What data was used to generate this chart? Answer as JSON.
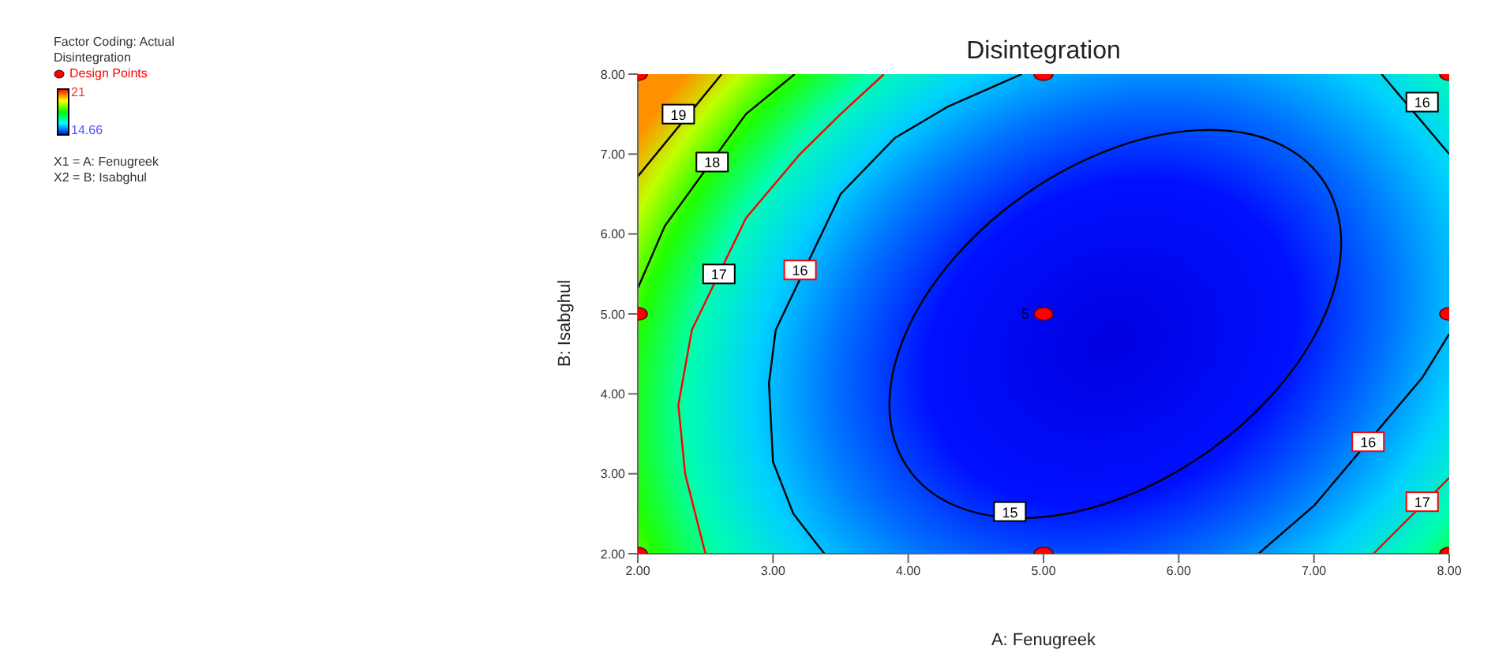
{
  "chart_data": {
    "type": "line",
    "title": "Disintegration",
    "xlabel": "A: Fenugreek",
    "ylabel": "B: Isabghul",
    "xlim": [
      2,
      8
    ],
    "xticks": [
      {
        "value": 2,
        "label": "2.00"
      },
      {
        "value": 3,
        "label": "3.00"
      },
      {
        "value": 4,
        "label": "4.00"
      },
      {
        "value": 5,
        "label": "5.00"
      },
      {
        "value": 6,
        "label": "6.00"
      },
      {
        "value": 7,
        "label": "7.00"
      },
      {
        "value": 8,
        "label": "8.00"
      }
    ],
    "ylim": [
      2,
      8
    ],
    "yticks": [
      {
        "value": 2,
        "label": "2.00"
      },
      {
        "value": 3,
        "label": "3.00"
      },
      {
        "value": 4,
        "label": "4.00"
      },
      {
        "value": 5,
        "label": "5.00"
      },
      {
        "value": 6,
        "label": "6.00"
      },
      {
        "value": 7,
        "label": "7.00"
      },
      {
        "value": 8,
        "label": "8.00"
      }
    ],
    "legend": "left",
    "series": [
      {
        "color": "#000000",
        "x": [
          2.62,
          2.0
        ],
        "values": [
          8,
          6.72
        ]
      },
      {
        "color": "#000000",
        "x": [
          3.16,
          2.8,
          2.2,
          2.0
        ],
        "values": [
          8,
          7.5,
          6.1,
          5.32
        ]
      },
      {
        "color": "#ff0000",
        "x": [
          3.82,
          3.5,
          3.2,
          2.8,
          2.4,
          2.3,
          2.35,
          2.5
        ],
        "values": [
          8,
          7.5,
          7.0,
          6.2,
          4.8,
          3.86,
          3.0,
          2
        ]
      },
      {
        "color": "#000000",
        "x": [
          4.84,
          4.3,
          3.9,
          3.5,
          3.02,
          2.97,
          3.0,
          3.15,
          3.38
        ],
        "values": [
          8,
          7.6,
          7.2,
          6.5,
          4.8,
          4.13,
          3.15,
          2.5,
          2
        ]
      },
      {
        "color": "#000000",
        "x": [
          7.5,
          8.0
        ],
        "values": [
          8,
          7.0
        ]
      },
      {
        "color": "#000000",
        "x": [
          8.0,
          7.8,
          7.0,
          6.59
        ],
        "values": [
          4.75,
          4.2,
          2.6,
          2
        ]
      },
      {
        "color": "#ff0000",
        "x": [
          8.0,
          7.44
        ],
        "values": [
          2.95,
          2
        ]
      },
      {
        "type": "scatter",
        "name": "Design Points",
        "color": "#ff0000",
        "x": [
          2,
          2,
          2,
          5,
          5,
          5,
          8,
          8,
          8
        ],
        "values": [
          2,
          5,
          8,
          2,
          5,
          8,
          2,
          5,
          8
        ]
      }
    ],
    "annotations": [
      "Factor Coding: Actual",
      "Disintegration",
      "21",
      "14.66",
      "X1 = A: Fenugreek",
      "X2 = B: Isabghul",
      "15",
      {
        "text": "19",
        "x": 2.3,
        "y": 7.5
      },
      {
        "text": "18",
        "x": 2.55,
        "y": 6.9
      },
      {
        "text": "17",
        "x": 2.6,
        "y": 5.5
      },
      {
        "text": "16",
        "x": 3.2,
        "y": 5.55
      },
      {
        "text": "16",
        "x": 7.8,
        "y": 7.65
      },
      {
        "text": "16",
        "x": 7.4,
        "y": 3.4
      },
      {
        "text": "17",
        "x": 7.8,
        "y": 2.65
      },
      {
        "text": "5",
        "x": 5,
        "y": 5
      }
    ]
  }
}
